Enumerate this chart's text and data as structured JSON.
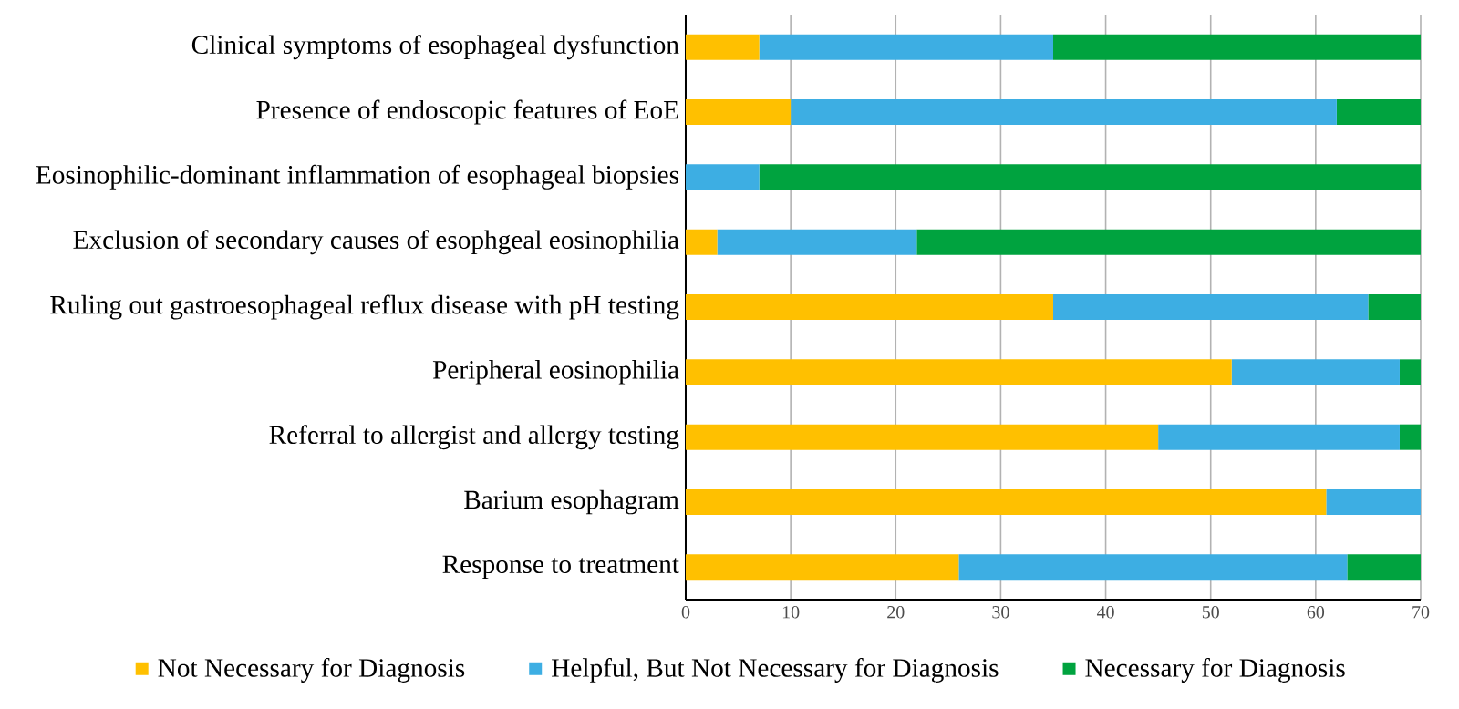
{
  "chart_data": {
    "type": "bar",
    "orientation": "horizontal",
    "stacked": true,
    "categories": [
      "Clinical symptoms of esophageal dysfunction",
      "Presence of endoscopic features of EoE",
      "Eosinophilic-dominant inflammation of esophageal biopsies",
      "Exclusion of secondary causes of esophgeal eosinophilia",
      "Ruling out gastroesophageal reflux disease with pH testing",
      "Peripheral eosinophilia",
      "Referral to allergist and allergy testing",
      "Barium esophagram",
      "Response to treatment"
    ],
    "series": [
      {
        "name": "Not Necessary for Diagnosis",
        "color": "#ffc000",
        "values": [
          7,
          10,
          0,
          3,
          35,
          52,
          45,
          61,
          26
        ]
      },
      {
        "name": "Helpful, But Not Necessary for Diagnosis",
        "color": "#3daee3",
        "values": [
          28,
          52,
          7,
          19,
          30,
          16,
          23,
          9,
          37
        ]
      },
      {
        "name": "Necessary for Diagnosis",
        "color": "#00a33f",
        "values": [
          35,
          8,
          63,
          48,
          5,
          2,
          2,
          0,
          7
        ]
      }
    ],
    "xlim": [
      0,
      70
    ],
    "xticks": [
      0,
      10,
      20,
      30,
      40,
      50,
      60,
      70
    ],
    "grid": "x",
    "legend": "bottom"
  }
}
